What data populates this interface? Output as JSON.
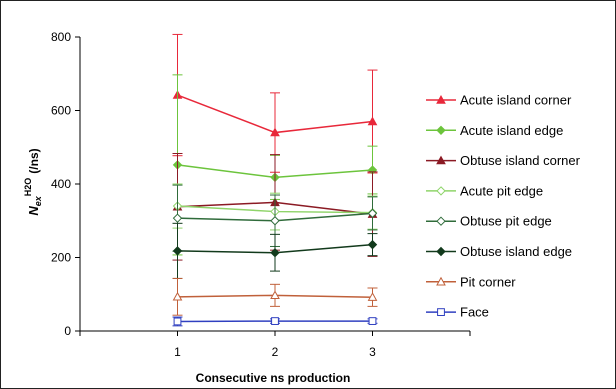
{
  "chart_data": {
    "type": "line",
    "x": [
      1,
      2,
      3
    ],
    "xlabel": "Consecutive ns production",
    "ylabel_main": "N",
    "ylabel_sub": "ex",
    "ylabel_sup": "H2O",
    "ylabel_unit": "(/ns)",
    "xlim": [
      0,
      4
    ],
    "ylim": [
      0,
      800
    ],
    "yticks": [
      0,
      200,
      400,
      600,
      800
    ],
    "xticks": [
      1,
      2,
      3
    ],
    "grid": false,
    "legend_position": "right",
    "series": [
      {
        "name": "Acute island corner",
        "values": [
          642,
          540,
          570
        ],
        "err": [
          165,
          108,
          140
        ],
        "color": "#e8283a",
        "marker": "triangle",
        "filled": true
      },
      {
        "name": "Acute island edge",
        "values": [
          452,
          418,
          438
        ],
        "err": [
          245,
          60,
          65
        ],
        "color": "#6cc43c",
        "marker": "diamond",
        "filled": true
      },
      {
        "name": "Obtuse island corner",
        "values": [
          338,
          350,
          318
        ],
        "err": [
          145,
          130,
          115
        ],
        "color": "#8b1a24",
        "marker": "triangle",
        "filled": true
      },
      {
        "name": "Acute pit edge",
        "values": [
          340,
          325,
          322
        ],
        "err": [
          60,
          50,
          45
        ],
        "color": "#8fd46a",
        "marker": "diamond",
        "filled": false
      },
      {
        "name": "Obtuse pit edge",
        "values": [
          307,
          300,
          320
        ],
        "err": [
          90,
          70,
          45
        ],
        "color": "#2f6b3a",
        "marker": "diamond",
        "filled": false
      },
      {
        "name": "Obtuse island edge",
        "values": [
          218,
          213,
          235
        ],
        "err": [
          75,
          50,
          30
        ],
        "color": "#123a1c",
        "marker": "diamond",
        "filled": true
      },
      {
        "name": "Pit corner",
        "values": [
          93,
          97,
          92
        ],
        "err": [
          50,
          30,
          25
        ],
        "color": "#c0603a",
        "marker": "triangle",
        "filled": false
      },
      {
        "name": "Face",
        "values": [
          26,
          27,
          27
        ],
        "err": [
          12,
          6,
          6
        ],
        "color": "#3040c0",
        "marker": "square",
        "filled": false
      }
    ]
  }
}
